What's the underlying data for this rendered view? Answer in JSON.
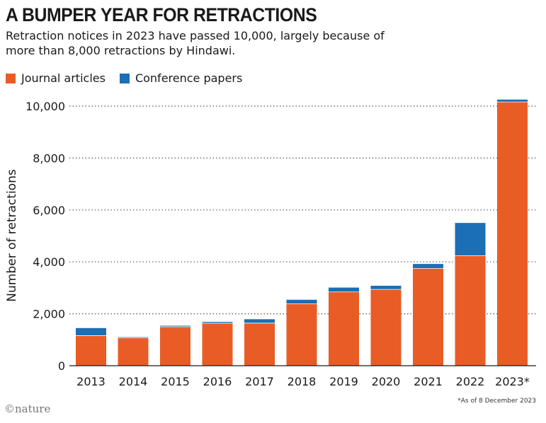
{
  "colors": {
    "journal": "#E95C26",
    "conference": "#1B6FB5",
    "grid": "#555555"
  },
  "credit": "©nature",
  "chart_data": {
    "type": "bar",
    "stacked": true,
    "title": "A BUMPER YEAR FOR RETRACTIONS",
    "subtitle": "Retraction notices in 2023 have passed 10,000, largely because of more than 8,000 retractions by Hindawi.",
    "ylabel": "Number of retractions",
    "xlabel": "",
    "ylim": [
      0,
      10000
    ],
    "yticks": [
      0,
      2000,
      4000,
      6000,
      8000,
      10000
    ],
    "ytick_labels": [
      "0",
      "2,000",
      "4,000",
      "6,000",
      "8,000",
      "10,000"
    ],
    "categories": [
      "2013",
      "2014",
      "2015",
      "2016",
      "2017",
      "2018",
      "2019",
      "2020",
      "2021",
      "2022",
      "2023*"
    ],
    "series": [
      {
        "name": "Journal articles",
        "values": [
          1160,
          1070,
          1500,
          1640,
          1640,
          2380,
          2840,
          2940,
          3750,
          4240,
          10160
        ]
      },
      {
        "name": "Conference papers",
        "values": [
          290,
          30,
          40,
          50,
          150,
          160,
          170,
          140,
          170,
          1260,
          90
        ]
      }
    ],
    "legend": "top-left",
    "grid": "horizontal-dotted",
    "footnote": "*As of 8 December 2023"
  }
}
